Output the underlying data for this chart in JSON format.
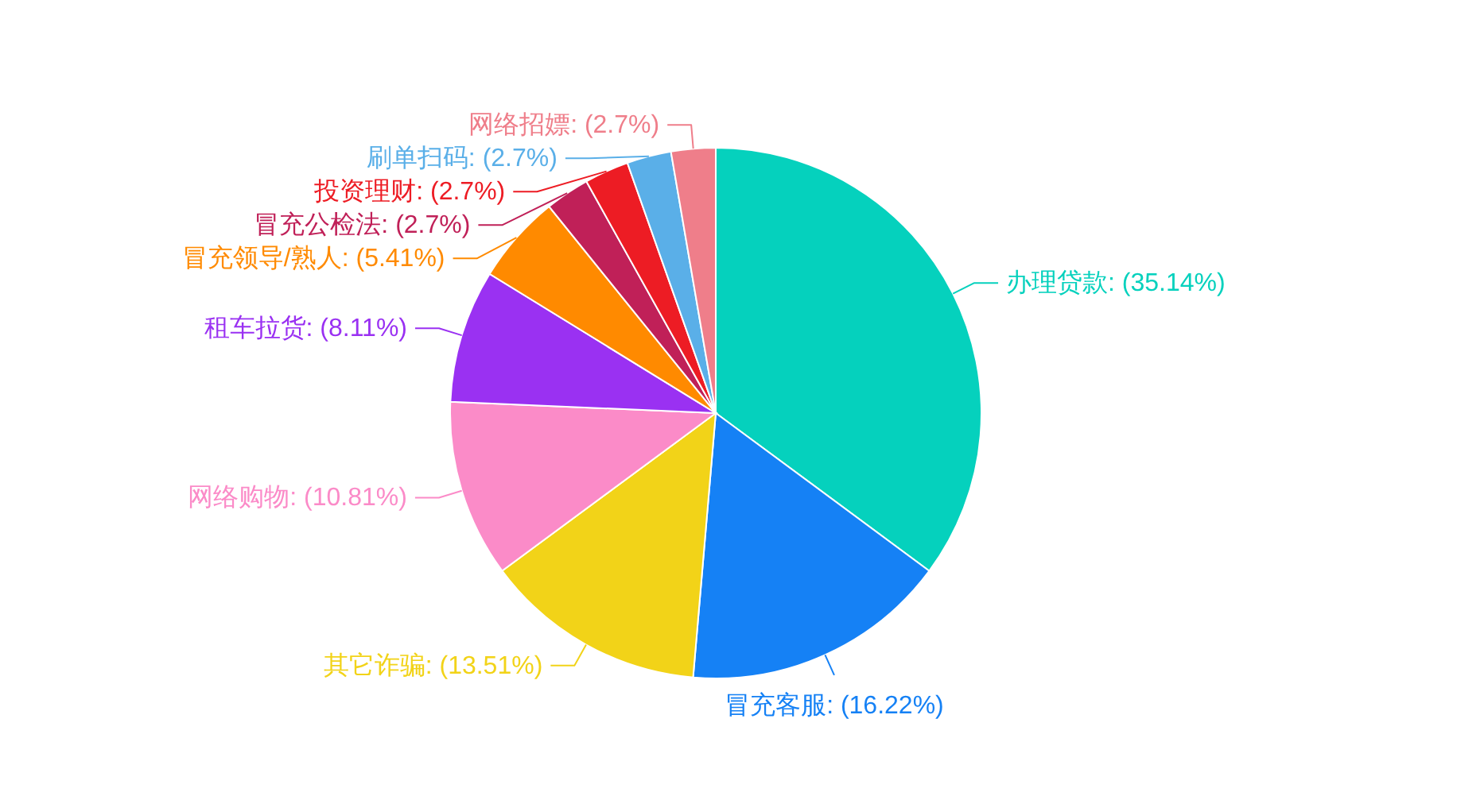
{
  "chart_data": {
    "type": "pie",
    "categories": [
      "办理贷款",
      "冒充客服",
      "其它诈骗",
      "网络购物",
      "租车拉货",
      "冒充领导/熟人",
      "冒充公检法",
      "投资理财",
      "刷单扫码",
      "网络招嫖"
    ],
    "values": [
      35.14,
      16.22,
      13.51,
      10.81,
      8.11,
      5.41,
      2.7,
      2.7,
      2.7,
      2.7
    ],
    "value_labels": [
      ": (35.14%)",
      ": (16.22%)",
      ": (13.51%)",
      ": (10.81%)",
      ": (8.11%)",
      ": (5.41%)",
      ": (2.7%)",
      ": (2.7%)",
      ": (2.7%)",
      ": (2.7%)"
    ],
    "colors": [
      "#05d1bd",
      "#1581f5",
      "#f2d318",
      "#fb8bc8",
      "#9a31f2",
      "#ff8a00",
      "#c02058",
      "#ed1c24",
      "#5aafe8",
      "#ef7e8a"
    ]
  }
}
